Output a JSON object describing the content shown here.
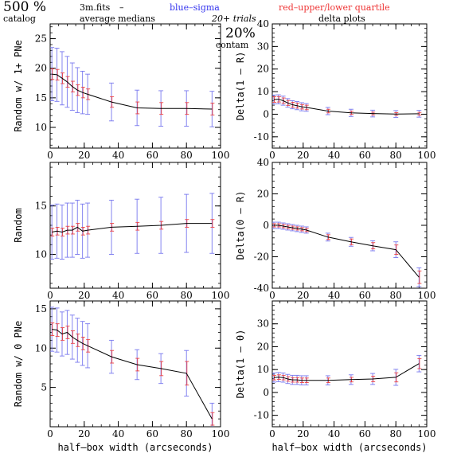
{
  "header": {
    "catalog_size": "500 %",
    "catalog_word": "catalog",
    "file_name": "3m.fits",
    "dash": "–",
    "left_title": "average medians",
    "blue_label": "blue–sigma",
    "red_label": "red–upper/lower quartile",
    "trials": "20+ trials",
    "contam_pct": "20%",
    "contam_word": "contam",
    "right_title": "delta plots"
  },
  "colors": {
    "sigma": "#7777ee",
    "quartile": "#ee4444",
    "median": "#000000",
    "blue_text": "#3333ee",
    "red_text": "#ee3333"
  },
  "chart_data": [
    {
      "id": "left-top",
      "type": "line",
      "xlabel": "",
      "ylabel": "Random w/ 1+ PNe",
      "xlim": [
        0,
        100
      ],
      "ylim": [
        6.5,
        27.5
      ],
      "x_ticks": [
        0,
        20,
        40,
        60,
        80,
        100
      ],
      "y_ticks": [
        10,
        15,
        20,
        25
      ],
      "x": [
        1,
        4,
        7,
        10,
        13,
        16,
        19,
        22,
        36,
        51,
        65,
        80,
        95
      ],
      "median": [
        19.0,
        18.9,
        18.3,
        17.7,
        16.9,
        16.3,
        15.9,
        15.6,
        14.3,
        13.3,
        13.2,
        13.2,
        13.1
      ],
      "sigma_err": [
        4.5,
        4.5,
        4.5,
        4.3,
        4.0,
        3.8,
        3.6,
        3.4,
        3.2,
        3.0,
        3.0,
        3.0,
        3.0
      ],
      "quartile_err": [
        0.9,
        0.9,
        0.9,
        0.9,
        0.9,
        0.9,
        0.9,
        0.9,
        0.9,
        1.0,
        1.0,
        1.0,
        1.0
      ]
    },
    {
      "id": "right-top",
      "type": "line",
      "xlabel": "",
      "ylabel": "Delta(1 – R)",
      "xlim": [
        0,
        100
      ],
      "ylim": [
        -15,
        40
      ],
      "x_ticks": [
        0,
        20,
        40,
        60,
        80,
        100
      ],
      "y_ticks": [
        -10,
        0,
        10,
        20,
        30,
        40
      ],
      "x": [
        1,
        4,
        7,
        10,
        13,
        16,
        19,
        22,
        36,
        51,
        65,
        80,
        95
      ],
      "median": [
        6.5,
        6.6,
        6.0,
        5.0,
        4.2,
        3.8,
        3.3,
        3.0,
        1.4,
        0.6,
        0.3,
        0.1,
        0.2
      ],
      "sigma_err": [
        2.0,
        2.0,
        2.0,
        1.9,
        1.8,
        1.8,
        1.8,
        1.7,
        1.6,
        1.6,
        1.5,
        1.5,
        1.5
      ],
      "quartile_err": [
        1.2,
        1.2,
        1.2,
        1.1,
        1.1,
        1.1,
        1.0,
        1.0,
        0.8,
        0.7,
        0.6,
        0.6,
        0.6
      ]
    },
    {
      "id": "left-mid",
      "type": "line",
      "xlabel": "",
      "ylabel": "Random",
      "xlim": [
        0,
        100
      ],
      "ylim": [
        6.5,
        19.5
      ],
      "x_ticks": [
        0,
        20,
        40,
        60,
        80,
        100
      ],
      "y_ticks": [
        10,
        15
      ],
      "x": [
        1,
        4,
        7,
        10,
        13,
        16,
        19,
        22,
        36,
        51,
        65,
        80,
        95
      ],
      "median": [
        12.3,
        12.4,
        12.3,
        12.5,
        12.5,
        12.8,
        12.4,
        12.5,
        12.8,
        12.9,
        13.0,
        13.2,
        13.2
      ],
      "sigma_err": [
        2.8,
        2.8,
        2.8,
        2.8,
        2.8,
        2.8,
        2.8,
        2.8,
        2.8,
        2.8,
        2.9,
        3.0,
        3.1
      ],
      "quartile_err": [
        0.4,
        0.4,
        0.4,
        0.4,
        0.4,
        0.4,
        0.4,
        0.4,
        0.4,
        0.4,
        0.4,
        0.4,
        0.4
      ]
    },
    {
      "id": "right-mid",
      "type": "line",
      "xlabel": "",
      "ylabel": "Delta(0 – R)",
      "xlim": [
        0,
        100
      ],
      "ylim": [
        -40,
        40
      ],
      "x_ticks": [
        0,
        20,
        40,
        60,
        80,
        100
      ],
      "y_ticks": [
        -40,
        -20,
        0,
        20,
        40
      ],
      "x": [
        1,
        4,
        7,
        10,
        13,
        16,
        19,
        22,
        36,
        51,
        65,
        80,
        95
      ],
      "median": [
        0.0,
        0.0,
        -0.5,
        -1.0,
        -1.5,
        -2.0,
        -2.5,
        -3.0,
        -7.5,
        -10.5,
        -13.0,
        -15.5,
        -33.0
      ],
      "sigma_err": [
        2.0,
        2.0,
        2.0,
        2.0,
        2.0,
        2.0,
        2.0,
        2.0,
        2.5,
        2.8,
        3.2,
        5.0,
        6.0
      ],
      "quartile_err": [
        1.0,
        1.0,
        1.0,
        1.0,
        1.0,
        1.0,
        1.0,
        1.0,
        1.5,
        1.8,
        2.0,
        3.0,
        4.0
      ]
    },
    {
      "id": "left-bot",
      "type": "line",
      "xlabel": "half–box width (arcseconds)",
      "ylabel": "Random w/ 0 PNe",
      "xlim": [
        0,
        100
      ],
      "ylim": [
        0,
        16
      ],
      "x_ticks": [
        0,
        20,
        40,
        60,
        80,
        100
      ],
      "y_ticks": [
        5,
        10,
        15
      ],
      "x": [
        1,
        4,
        7,
        10,
        13,
        16,
        19,
        22,
        36,
        51,
        65,
        80,
        95
      ],
      "median": [
        12.4,
        12.3,
        11.8,
        12.0,
        11.4,
        11.0,
        10.6,
        10.3,
        8.9,
        7.9,
        7.4,
        6.8,
        1.0
      ],
      "sigma_err": [
        2.8,
        2.8,
        2.8,
        2.8,
        2.8,
        2.8,
        2.8,
        2.8,
        2.1,
        1.9,
        1.9,
        2.9,
        2.0
      ],
      "quartile_err": [
        0.8,
        0.8,
        0.8,
        0.8,
        0.8,
        0.8,
        0.8,
        0.8,
        0.8,
        0.8,
        0.9,
        1.5,
        0.8
      ]
    },
    {
      "id": "right-bot",
      "type": "line",
      "xlabel": "half–box width (arcseconds)",
      "ylabel": "Delta(1 – 0)",
      "xlim": [
        0,
        100
      ],
      "ylim": [
        -15,
        40
      ],
      "x_ticks": [
        0,
        20,
        40,
        60,
        80,
        100
      ],
      "y_ticks": [
        -10,
        0,
        10,
        20,
        30
      ],
      "x": [
        1,
        4,
        7,
        10,
        13,
        16,
        19,
        22,
        36,
        51,
        65,
        80,
        95
      ],
      "median": [
        6.5,
        6.7,
        6.5,
        5.9,
        5.5,
        5.5,
        5.3,
        5.3,
        5.3,
        5.6,
        5.9,
        6.6,
        12.6
      ],
      "sigma_err": [
        2.0,
        2.0,
        2.0,
        2.0,
        2.0,
        2.0,
        2.0,
        2.0,
        2.0,
        2.1,
        2.4,
        3.5,
        3.6
      ],
      "quartile_err": [
        1.0,
        1.0,
        1.0,
        1.0,
        1.0,
        1.0,
        1.0,
        1.0,
        1.0,
        1.0,
        1.2,
        2.0,
        2.2
      ]
    }
  ]
}
